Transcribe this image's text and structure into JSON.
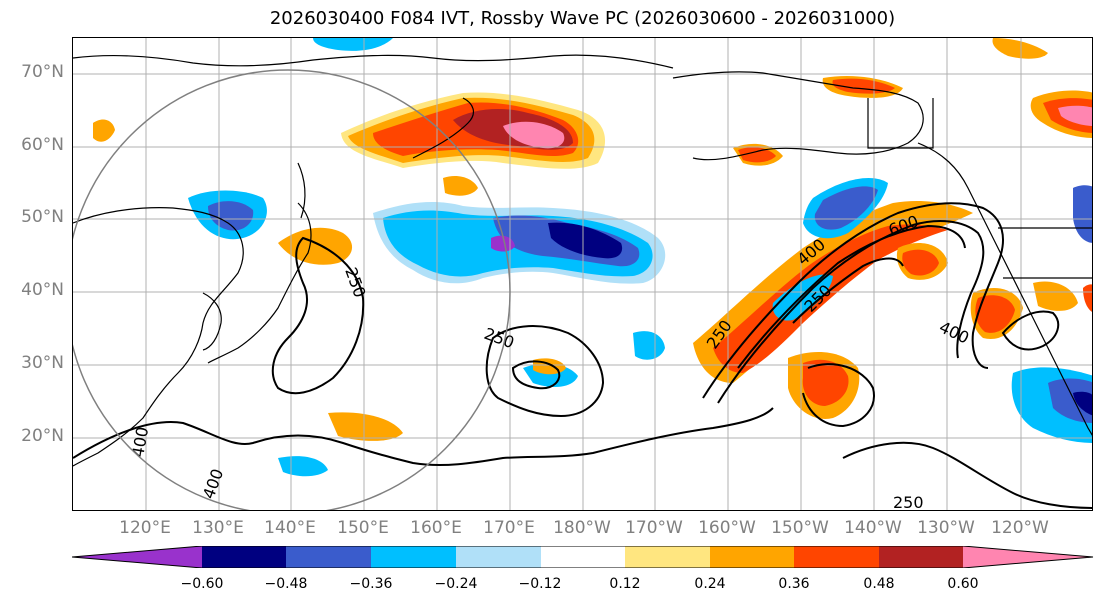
{
  "title": "2026030400 F084 IVT, Rossby Wave PC (2026030600 - 2026031000)",
  "map": {
    "lat_labels": [
      "70°N",
      "60°N",
      "50°N",
      "40°N",
      "30°N",
      "20°N"
    ],
    "lon_labels": [
      "120°E",
      "130°E",
      "140°E",
      "150°E",
      "160°E",
      "170°E",
      "180°W",
      "170°W",
      "160°W",
      "150°W",
      "140°W",
      "130°W",
      "120°W"
    ],
    "contour_labels": [
      "250",
      "400",
      "600",
      "400",
      "250",
      "250",
      "250",
      "400",
      "400",
      "250"
    ]
  },
  "colorbar": {
    "ticks": [
      "−0.60",
      "−0.48",
      "−0.36",
      "−0.24",
      "−0.12",
      "0.12",
      "0.24",
      "0.36",
      "0.48",
      "0.60"
    ],
    "colors": [
      "#9932cc",
      "#000080",
      "#3a5ccc",
      "#00bfff",
      "#b0e0f8",
      "#ffffff",
      "#ffe680",
      "#ffa500",
      "#ff4500",
      "#b22222",
      "#ff85b0"
    ]
  }
}
